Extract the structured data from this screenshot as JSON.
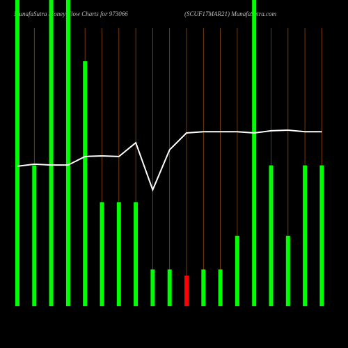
{
  "chart_data": {
    "type": "bar",
    "title": "MunafaSutra  Money Flow  Charts for 973066",
    "subtitle": "(SCUF17MAR21) MunafaSutra.com",
    "categories": [
      null,
      null,
      null,
      null,
      null,
      null,
      null,
      null,
      null,
      null,
      null,
      null,
      null,
      null,
      null,
      null,
      null,
      null,
      null
    ],
    "ylim": [
      0,
      100
    ],
    "series": [
      {
        "type": "bar",
        "colors": [
          "#00ff00",
          "#00ff00",
          "#00ff00",
          "#00ff00",
          "#00ff00",
          "#00ff00",
          "#00ff00",
          "#00ff00",
          "#00ff00",
          "#00ff00",
          "#ff0000",
          "#00ff00",
          "#00ff00",
          "#00ff00",
          "#00ff00",
          "#00ff00",
          "#00ff00",
          "#00ff00",
          "#00ff00"
        ],
        "values": [
          100,
          46,
          100,
          100,
          80,
          34,
          34,
          34,
          12,
          12,
          10,
          12,
          12,
          23,
          100,
          46,
          23,
          46,
          46
        ]
      },
      {
        "type": "line",
        "color": "#ffffff",
        "values": [
          45.7,
          46.4,
          46.1,
          46.1,
          48.9,
          49.1,
          48.9,
          53.4,
          38,
          51.1,
          56.6,
          57,
          57,
          57,
          56.6,
          57.3,
          57.5,
          57,
          57
        ]
      }
    ]
  }
}
